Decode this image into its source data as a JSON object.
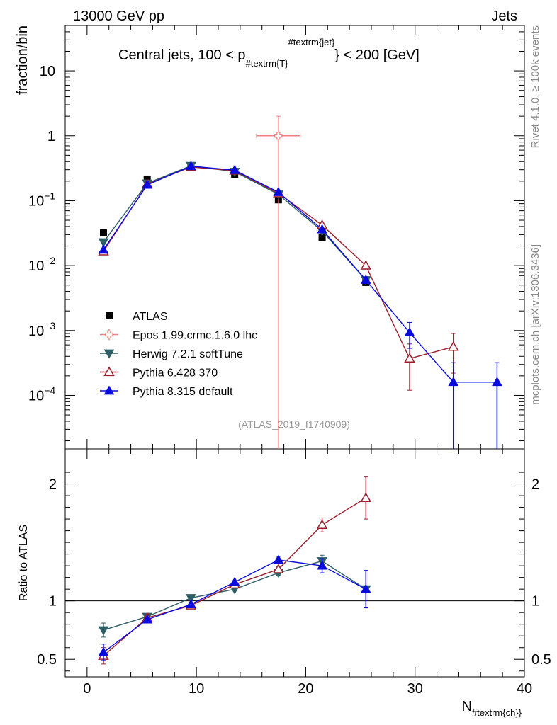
{
  "header": {
    "left": "13000 GeV pp",
    "right": "Jets"
  },
  "side_labels": {
    "upper": "Rivet 4.1.0, ≥ 100k events",
    "lower": "mcplots.cern.ch [arXiv:1306.3436]"
  },
  "chart_data": {
    "type": "scatter",
    "title": "Central jets, 100 < p",
    "title_sub": "#textrm{T}",
    "title_sup": "#textrm{jet}",
    "title_tail": "} < 200 [GeV]",
    "analysis_tag": "(ATLAS_2019_I1740909)",
    "xlabel": "N",
    "xlabel_sub": "#textrm{ch}}",
    "ylabel": "fraction/bin",
    "ratio_ylabel": "Ratio to ATLAS",
    "xlim": [
      -2,
      40
    ],
    "ylim": [
      1.5e-05,
      50
    ],
    "ylim_ratio": [
      0.35,
      2.3
    ],
    "x_ticks": [
      0,
      10,
      20,
      30,
      40
    ],
    "x_tick_labels": [
      "0",
      "10",
      "20",
      "30",
      "40"
    ],
    "y_ticks": [
      10,
      1,
      0.1,
      0.01,
      0.001,
      0.0001
    ],
    "y_tick_labels": [
      {
        "base": "10",
        "exp": ""
      },
      {
        "base": "1",
        "exp": ""
      },
      {
        "base": "10",
        "exp": "−1"
      },
      {
        "base": "10",
        "exp": "−2"
      },
      {
        "base": "10",
        "exp": "−3"
      },
      {
        "base": "10",
        "exp": "−4"
      }
    ],
    "ratio_ticks": [
      0.5,
      1,
      2
    ],
    "ratio_tick_labels": [
      "0.5",
      "1",
      "2"
    ],
    "legend_position": "lower-left",
    "series": [
      {
        "name": "ATLAS",
        "color": "#000000",
        "marker": "square",
        "line": false,
        "x": [
          1.5,
          5.5,
          9.5,
          13.5,
          17.5,
          21.5,
          25.5
        ],
        "y": [
          0.032,
          0.215,
          0.345,
          0.255,
          0.103,
          0.027,
          0.0055
        ],
        "yerr": [
          0,
          0,
          0,
          0,
          0,
          0,
          0
        ],
        "ratio": null
      },
      {
        "name": "Epos 1.99.crmc.1.6.0 lhc",
        "color": "#f08080",
        "marker": "hollow-cross",
        "line": false,
        "x": [
          17.5
        ],
        "y": [
          1.0
        ],
        "xerr": [
          2.0
        ],
        "yerr_up": [
          1.0
        ],
        "yerr_down": [
          1.0
        ],
        "ratio": null
      },
      {
        "name": "Herwig 7.2.1 softTune",
        "color": "#2e5e66",
        "marker": "triangle-down",
        "line": true,
        "x": [
          1.5,
          5.5,
          9.5,
          13.5,
          17.5,
          21.5,
          25.5
        ],
        "y": [
          0.023,
          0.185,
          0.345,
          0.28,
          0.125,
          0.034,
          0.006
        ],
        "ratio": [
          0.75,
          0.865,
          1.025,
          1.1,
          1.24,
          1.34,
          1.1
        ],
        "ratio_err": [
          0.06,
          0.01,
          0.01,
          0.01,
          0.02,
          0.05,
          0.16
        ]
      },
      {
        "name": "Pythia 6.428 370",
        "color": "#9c1f2e",
        "marker": "hollow-triangle-up",
        "line": true,
        "x": [
          1.5,
          5.5,
          9.5,
          13.5,
          17.5,
          21.5,
          25.5,
          29.5,
          33.5
        ],
        "y": [
          0.0165,
          0.18,
          0.33,
          0.29,
          0.13,
          0.042,
          0.01,
          0.00037,
          0.00056
        ],
        "yerr": [
          0,
          0,
          0,
          0,
          0,
          0,
          0,
          0.00025,
          0.00034
        ],
        "ratio": [
          0.53,
          0.855,
          0.96,
          1.14,
          1.27,
          1.65,
          1.88
        ],
        "ratio_err": [
          0.07,
          0.01,
          0.01,
          0.01,
          0.02,
          0.06,
          0.18
        ]
      },
      {
        "name": "Pythia 8.315 default",
        "color": "#0a0adc",
        "marker": "triangle-up",
        "line": true,
        "x": [
          1.5,
          5.5,
          9.5,
          13.5,
          17.5,
          21.5,
          25.5,
          29.5,
          33.5,
          37.5
        ],
        "y": [
          0.0175,
          0.175,
          0.34,
          0.295,
          0.135,
          0.036,
          0.006,
          0.00093,
          0.00016,
          0.00016
        ],
        "yerr": [
          0,
          0,
          0,
          0,
          0,
          0,
          0.0007,
          0.0004,
          0.00016,
          0.00016
        ],
        "ratio": [
          0.56,
          0.84,
          0.97,
          1.16,
          1.35,
          1.3,
          1.1
        ],
        "ratio_err": [
          0.07,
          0.01,
          0.01,
          0.01,
          0.03,
          0.06,
          0.16
        ]
      }
    ]
  }
}
